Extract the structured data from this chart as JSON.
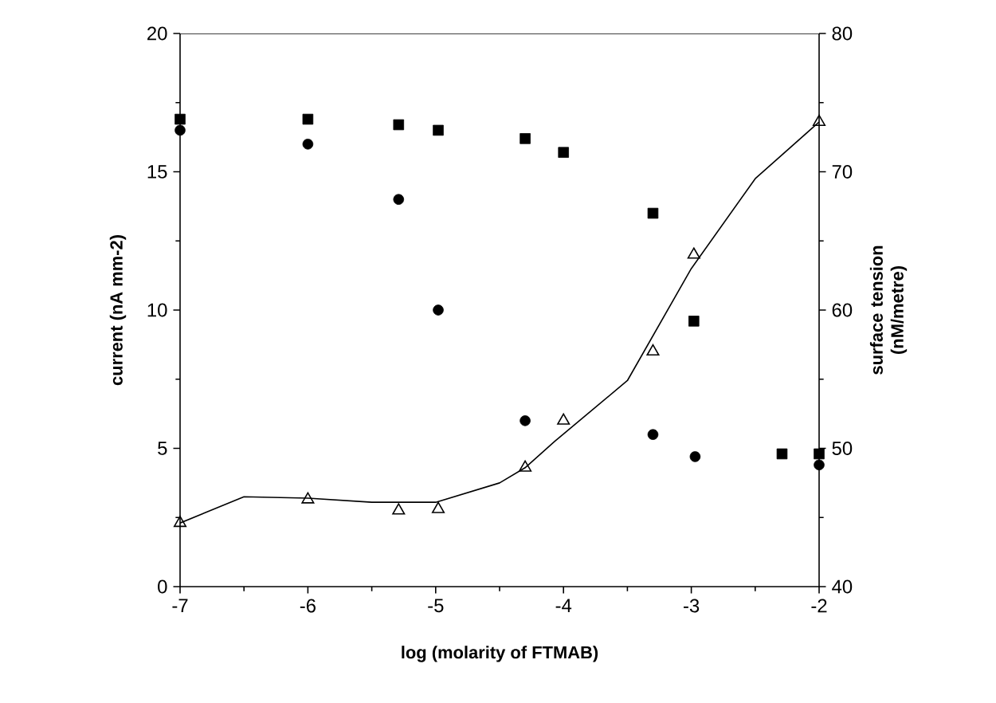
{
  "chart_data": {
    "type": "scatter",
    "xlabel": "log (molarity of FTMAB)",
    "ylabel": "current (nA mm-2)",
    "y2label": "surface tension (nM/metre)",
    "xlim": [
      -7,
      -2
    ],
    "xticks": [
      -7,
      -6,
      -5,
      -4,
      -3,
      -2
    ],
    "ylim": [
      0,
      20
    ],
    "yticks": [
      0,
      5,
      10,
      15,
      20
    ],
    "y2lim": [
      40,
      80
    ],
    "y2ticks": [
      40,
      50,
      60,
      70,
      80
    ],
    "series": [
      {
        "marker": "square",
        "color": "#000000",
        "x": [
          -7,
          -6,
          -5.29,
          -4.98,
          -4.3,
          -4.0,
          -3.3,
          -2.98,
          -2.29,
          -2
        ],
        "values": [
          16.9,
          16.9,
          16.7,
          16.5,
          16.2,
          15.7,
          13.5,
          9.6,
          4.8,
          4.8
        ]
      },
      {
        "marker": "circle",
        "color": "#000000",
        "x": [
          -7,
          -6,
          -5.29,
          -4.98,
          -4.3,
          -3.3,
          -2.97,
          -2
        ],
        "values": [
          16.5,
          16.0,
          14.0,
          10.0,
          6.0,
          5.5,
          4.7,
          4.4
        ]
      },
      {
        "marker": "triangle",
        "color": "#000000",
        "axis": "y2",
        "x": [
          -7,
          -6,
          -5.29,
          -4.98,
          -4.3,
          -4.0,
          -3.3,
          -2.98,
          -2
        ],
        "values": [
          44.6,
          46.3,
          45.5,
          45.6,
          48.6,
          52,
          57,
          64,
          73.6
        ]
      },
      {
        "type": "line",
        "marker": "none",
        "color": "#000000",
        "axis": "y2",
        "x": [
          -7,
          -6.5,
          -6,
          -5.5,
          -5,
          -4.5,
          -4.3,
          -4.07,
          -3.5,
          -3,
          -2.5,
          -2
        ],
        "values": [
          44.6,
          46.5,
          46.4,
          46.1,
          46.1,
          47.5,
          48.6,
          50.5,
          54.9,
          63,
          69.5,
          73.6
        ]
      }
    ]
  }
}
